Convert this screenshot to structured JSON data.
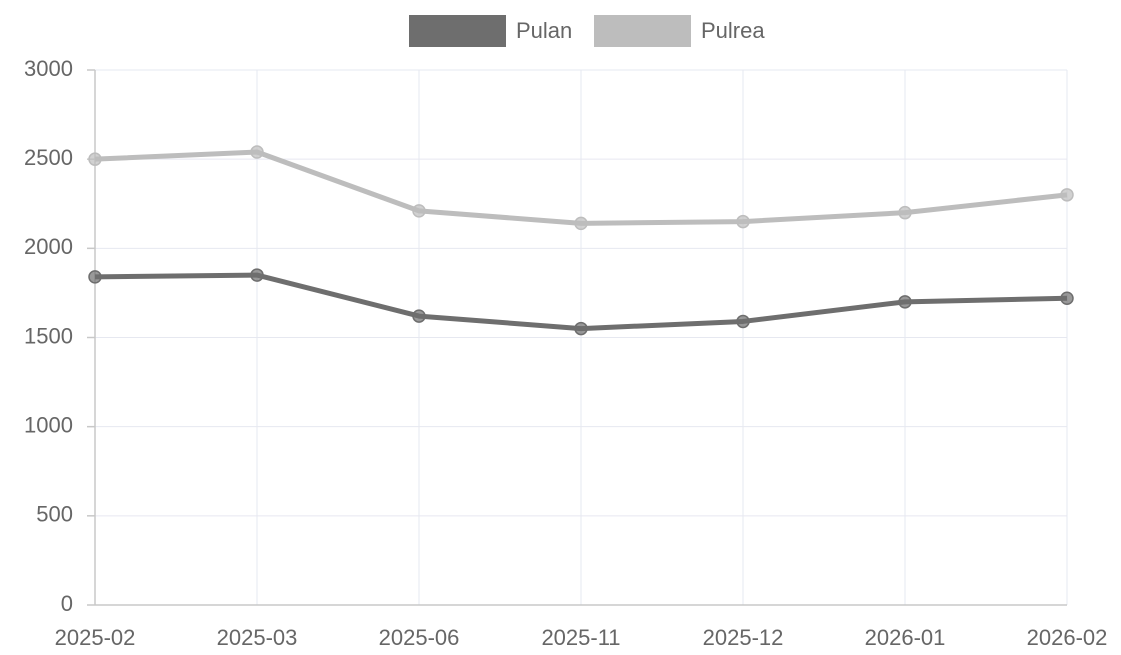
{
  "chart_data": {
    "type": "line",
    "categories": [
      "2025-02",
      "2025-03",
      "2025-06",
      "2025-11",
      "2025-12",
      "2026-01",
      "2026-02"
    ],
    "series": [
      {
        "name": "Pulan",
        "color": "#6e6e6e",
        "values": [
          1840,
          1850,
          1620,
          1550,
          1590,
          1700,
          1720
        ]
      },
      {
        "name": "Pulrea",
        "color": "#bdbdbd",
        "values": [
          2500,
          2540,
          2210,
          2140,
          2150,
          2200,
          2300
        ]
      }
    ],
    "ylim": [
      0,
      3000
    ],
    "yticks": [
      0,
      500,
      1000,
      1500,
      2000,
      2500,
      3000
    ],
    "grid": true,
    "legend": "top"
  }
}
